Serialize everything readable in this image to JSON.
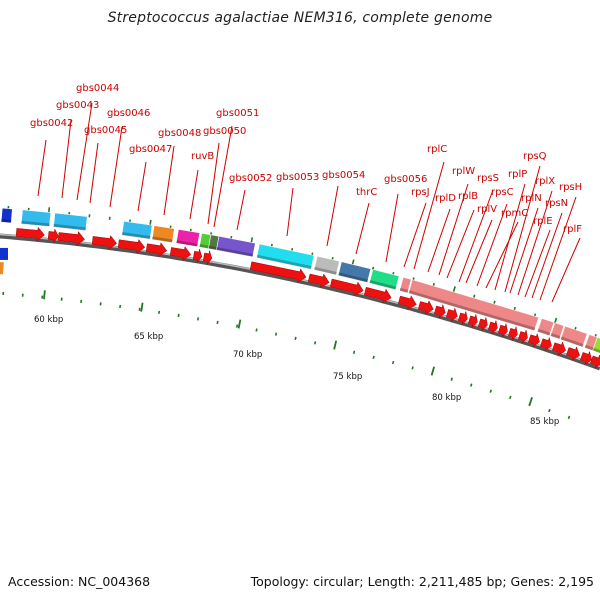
{
  "title": "Streptococcus agalactiae NEM316, complete genome",
  "footer": {
    "accession": "Accession: NC_004368",
    "summary": "Topology: circular; Length: 2,211,485 bp; Genes: 2,195"
  },
  "colors": {
    "label": "#cc0000",
    "cds_arrow": "#ee1111",
    "backbone": "#666666",
    "tick": "#227722"
  },
  "scale_labels": [
    "60 kbp",
    "65 kbp",
    "70 kbp",
    "75 kbp",
    "80 kbp",
    "85 kbp"
  ],
  "gene_labels": [
    "gbs0042",
    "gbs0043",
    "gbs0044",
    "gbs0045",
    "gbs0046",
    "gbs0047",
    "gbs0048",
    "ruvB",
    "gbs0050",
    "gbs0051",
    "gbs0052",
    "gbs0053",
    "gbs0054",
    "thrC",
    "gbs0056",
    "rpsJ",
    "rplC",
    "rplD",
    "rplW",
    "rplB",
    "rpsS",
    "rplV",
    "rpsC",
    "rpmC",
    "rplP",
    "rpsQ",
    "rplN",
    "rplX",
    "rplE",
    "rpsN",
    "rpsH",
    "rplF"
  ]
}
